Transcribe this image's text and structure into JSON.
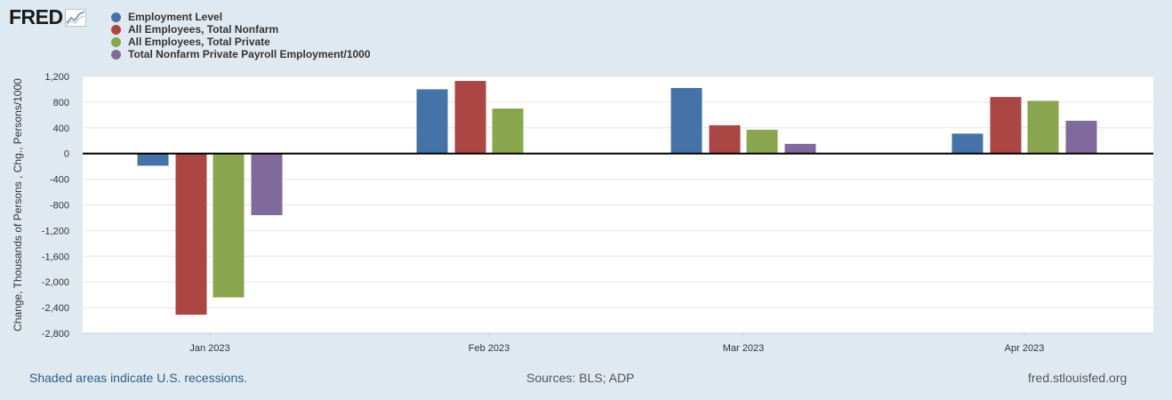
{
  "header": {
    "logo_text": "FRED",
    "logo_icon": "line-chart-icon"
  },
  "legend": [
    {
      "label": "Employment Level",
      "color": "#4572a7"
    },
    {
      "label": "All Employees, Total Nonfarm",
      "color": "#aa4643"
    },
    {
      "label": "All Employees, Total Private",
      "color": "#89a54e"
    },
    {
      "label": "Total Nonfarm Private Payroll Employment/1000",
      "color": "#80699b"
    }
  ],
  "chart_data": {
    "type": "bar",
    "categories": [
      "Jan 2023",
      "Feb 2023",
      "Mar 2023",
      "Apr 2023"
    ],
    "series": [
      {
        "name": "Employment Level",
        "color": "#4572a7",
        "values": [
          -190,
          1000,
          1020,
          310
        ]
      },
      {
        "name": "All Employees, Total Nonfarm",
        "color": "#aa4643",
        "values": [
          -2510,
          1130,
          440,
          880
        ]
      },
      {
        "name": "All Employees, Total Private",
        "color": "#89a54e",
        "values": [
          -2240,
          700,
          370,
          820
        ]
      },
      {
        "name": "Total Nonfarm Private Payroll Employment/1000",
        "color": "#80699b",
        "values": [
          -960,
          null,
          150,
          510
        ]
      }
    ],
    "ylabel": "Change, Thousands of Persons , Chg., Persons/1000",
    "xlabel": "",
    "ylim": [
      -2800,
      1200
    ],
    "yticks": [
      1200,
      800,
      400,
      0,
      -400,
      -800,
      -1200,
      -1600,
      -2000,
      -2400,
      -2800
    ],
    "ytick_labels": [
      "1,200",
      "800",
      "400",
      "0",
      "-400",
      "-800",
      "-1,200",
      "-1,600",
      "-2,000",
      "-2,400",
      "-2,800"
    ],
    "grid": true
  },
  "footer": {
    "recession_note": "Shaded areas indicate U.S. recessions.",
    "sources": "Sources: BLS; ADP",
    "site": "fred.stlouisfed.org"
  }
}
